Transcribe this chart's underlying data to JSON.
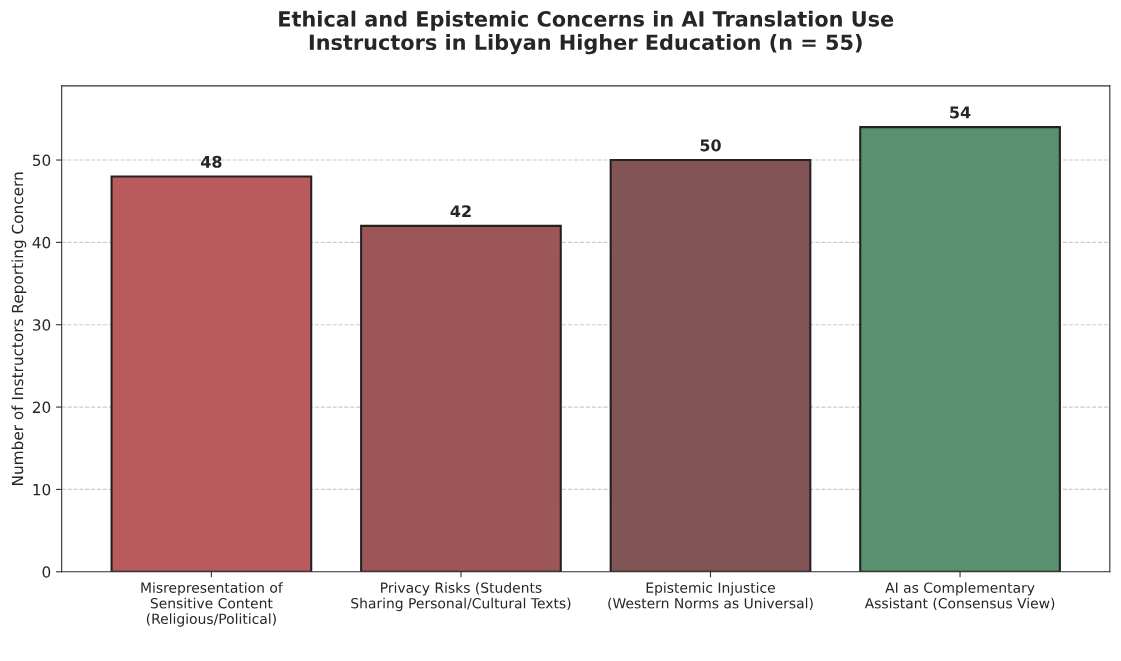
{
  "chart_data": {
    "type": "bar",
    "title": "Ethical and Epistemic Concerns in AI Translation Use\nInstructors in Libyan Higher Education (n = 55)",
    "ylabel": "Number of Instructors Reporting Concern",
    "categories": [
      "Misrepresentation of\nSensitive Content\n(Religious/Political)",
      "Privacy Risks (Students\nSharing Personal/Cultural Texts)",
      "Epistemic Injustice\n(Western Norms as Universal)",
      "AI as Complementary\nAssistant (Consensus View)"
    ],
    "values": [
      48,
      42,
      50,
      54
    ],
    "colors": [
      "#c94a4d",
      "#a94a4b",
      "#8b4c4e",
      "#4e9a6e"
    ],
    "ylim": [
      0,
      59
    ],
    "yticks": [
      0,
      10,
      20,
      30,
      40,
      50
    ],
    "grid": "y",
    "data_labels": true
  }
}
